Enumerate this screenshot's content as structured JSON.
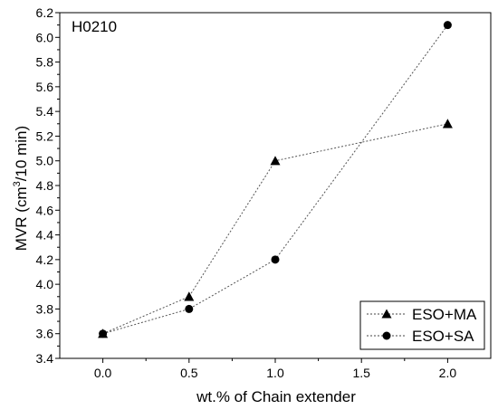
{
  "chart_data": {
    "type": "line",
    "annotation": "H0210",
    "xlabel": "wt.% of Chain extender",
    "ylabel_prefix": "MVR (cm",
    "ylabel_sup": "3",
    "ylabel_suffix": "/10 min)",
    "x_ticks": [
      "0.0",
      "0.5",
      "1.0",
      "1.5",
      "2.0"
    ],
    "x_tick_values": [
      0,
      0.5,
      1.0,
      1.5,
      2.0
    ],
    "y_ticks": [
      "3.4",
      "3.6",
      "3.8",
      "4.0",
      "4.2",
      "4.4",
      "4.6",
      "4.8",
      "5.0",
      "5.2",
      "5.4",
      "5.6",
      "5.8",
      "6.0",
      "6.2"
    ],
    "xlim": [
      -0.25,
      2.25
    ],
    "ylim": [
      3.4,
      6.2
    ],
    "grid": false,
    "legend_position": "bottom-right",
    "line_style": "dotted",
    "series": [
      {
        "name": "ESO+MA",
        "marker": "triangle",
        "x": [
          0,
          0.5,
          1.0,
          2.0
        ],
        "y": [
          3.6,
          3.9,
          5.0,
          5.3
        ]
      },
      {
        "name": "ESO+SA",
        "marker": "circle",
        "x": [
          0,
          0.5,
          1.0,
          2.0
        ],
        "y": [
          3.6,
          3.8,
          4.2,
          6.1
        ]
      }
    ]
  }
}
